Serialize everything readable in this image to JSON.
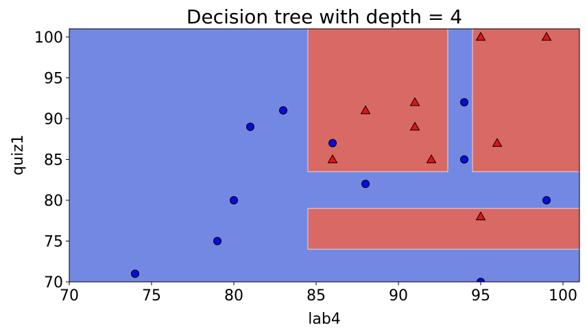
{
  "chart_data": {
    "type": "scatter",
    "title": "Decision tree with depth = 4",
    "xlabel": "lab4",
    "ylabel": "quiz1",
    "xlim": [
      70,
      101
    ],
    "ylim": [
      70,
      101
    ],
    "xticks": [
      70,
      75,
      80,
      85,
      90,
      95,
      100
    ],
    "yticks": [
      70,
      75,
      80,
      85,
      90,
      95,
      100
    ],
    "grid": false,
    "colors": {
      "background_region": "#7388e2",
      "red_region": "#d86965",
      "circle_marker": "#0a0adc",
      "triangle_marker": "#e41313"
    },
    "regions": [
      {
        "class": "triangle",
        "x": [
          84.5,
          93.0
        ],
        "y": [
          83.5,
          101
        ]
      },
      {
        "class": "triangle",
        "x": [
          94.5,
          101
        ],
        "y": [
          83.5,
          101
        ]
      },
      {
        "class": "triangle",
        "x": [
          84.5,
          101
        ],
        "y": [
          74.0,
          79.0
        ]
      }
    ],
    "series": [
      {
        "marker": "circle",
        "points": [
          [
            74,
            71
          ],
          [
            79,
            75
          ],
          [
            80,
            80
          ],
          [
            81,
            89
          ],
          [
            83,
            91
          ],
          [
            86,
            87
          ],
          [
            88,
            82
          ],
          [
            94,
            92
          ],
          [
            94,
            85
          ],
          [
            95,
            70
          ],
          [
            99,
            80
          ]
        ]
      },
      {
        "marker": "triangle",
        "points": [
          [
            86,
            85
          ],
          [
            88,
            91
          ],
          [
            91,
            92
          ],
          [
            91,
            89
          ],
          [
            92,
            85
          ],
          [
            95,
            100
          ],
          [
            99,
            100
          ],
          [
            96,
            87
          ],
          [
            95,
            78
          ]
        ]
      }
    ]
  }
}
